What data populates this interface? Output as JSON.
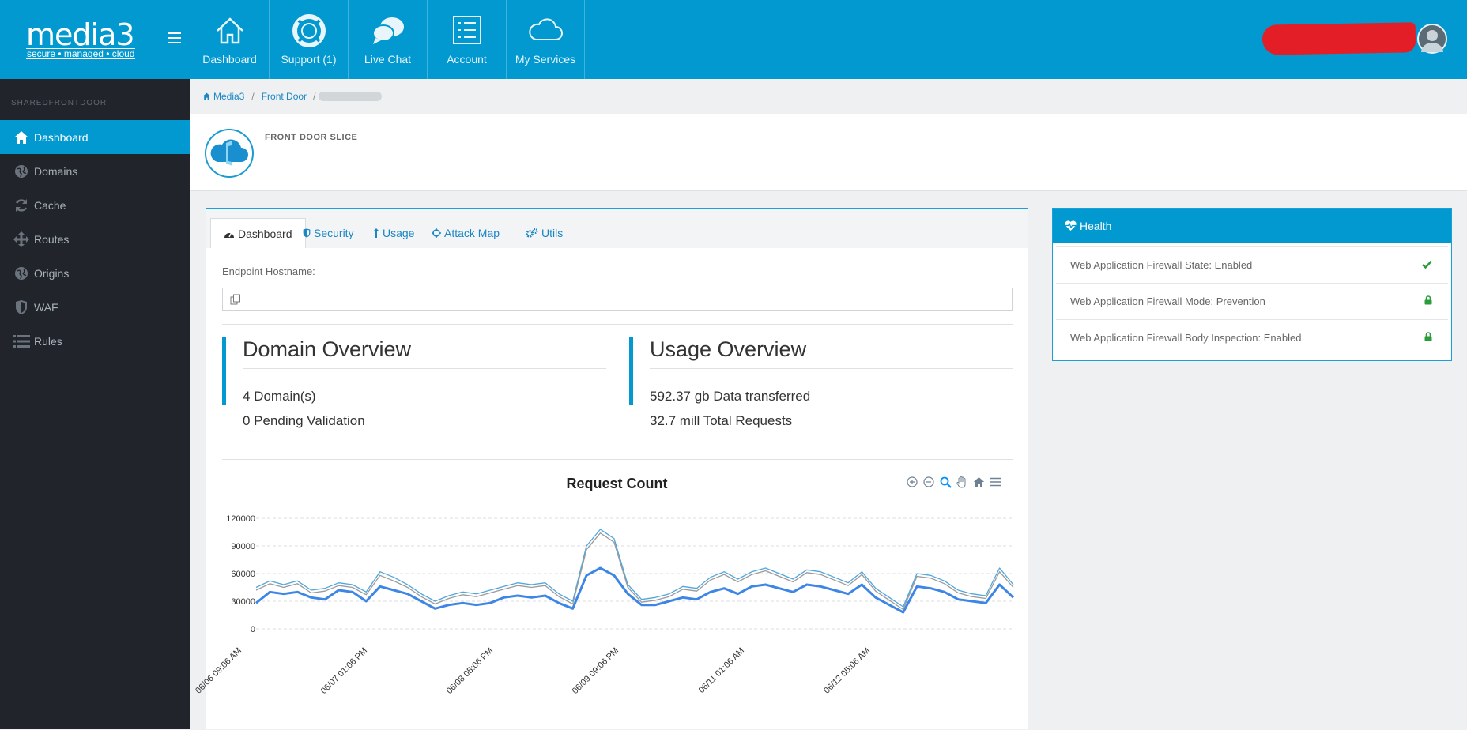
{
  "brand": {
    "name": "media3",
    "tagline": "secure • managed • cloud"
  },
  "topnav": [
    {
      "label": "Dashboard",
      "icon": "home-icon"
    },
    {
      "label": "Support (1)",
      "icon": "lifebuoy-icon"
    },
    {
      "label": "Live Chat",
      "icon": "chat-icon"
    },
    {
      "label": "Account",
      "icon": "list-icon"
    },
    {
      "label": "My Services",
      "icon": "cloud-icon"
    }
  ],
  "sidebar": {
    "heading": "SHAREDFRONTDOOR",
    "items": [
      {
        "label": "Dashboard",
        "icon": "home-icon",
        "active": true
      },
      {
        "label": "Domains",
        "icon": "globe-icon"
      },
      {
        "label": "Cache",
        "icon": "refresh-icon"
      },
      {
        "label": "Routes",
        "icon": "arrows-icon"
      },
      {
        "label": "Origins",
        "icon": "globe-icon"
      },
      {
        "label": "WAF",
        "icon": "shield-icon"
      },
      {
        "label": "Rules",
        "icon": "list-icon"
      }
    ]
  },
  "breadcrumb": {
    "home": "Media3",
    "section": "Front Door"
  },
  "page": {
    "title": "FRONT DOOR SLICE"
  },
  "tabs": [
    {
      "label": "Dashboard",
      "icon": "dashboard-icon",
      "active": true
    },
    {
      "label": "Security",
      "icon": "shield-icon"
    },
    {
      "label": "Usage",
      "icon": "upload-icon"
    },
    {
      "label": "Attack Map",
      "icon": "crosshair-icon"
    },
    {
      "label": "Utils",
      "icon": "cogs-icon"
    }
  ],
  "endpoint": {
    "label": "Endpoint Hostname:",
    "value": ""
  },
  "domain_overview": {
    "title": "Domain Overview",
    "line1": "4 Domain(s)",
    "line2": "0 Pending Validation"
  },
  "usage_overview": {
    "title": "Usage Overview",
    "line1": "592.37 gb Data transferred",
    "line2": "32.7 mill Total Requests"
  },
  "chart_data": {
    "type": "line",
    "title": "Request Count",
    "ylim": [
      0,
      120000
    ],
    "yticks": [
      "0",
      "30000",
      "60000",
      "90000",
      "120000"
    ],
    "xtick_labels": [
      "06/06 09:06 AM",
      "06/07 01:06 PM",
      "06/08 05:06 PM",
      "06/09 09:06 PM",
      "06/11 01:06 AM",
      "06/12 05:06 AM"
    ],
    "grid": true,
    "series_colors": [
      "#3d86e6",
      "#4fa6dc",
      "#9a9a9a",
      "#c0504d",
      "#5e8fc7",
      "#7fc4e4",
      "#333333"
    ],
    "series": [
      {
        "values": [
          28000,
          40000,
          38000,
          40000,
          34000,
          32000,
          42000,
          40000,
          30000,
          46000,
          42000,
          38000,
          30000,
          22000,
          26000,
          28000,
          26000,
          28000,
          34000,
          36000,
          34000,
          36000,
          28000,
          22000,
          58000,
          66000,
          58000,
          38000,
          26000,
          26000,
          30000,
          34000,
          32000,
          40000,
          44000,
          38000,
          46000,
          48000,
          44000,
          40000,
          48000,
          46000,
          42000,
          38000,
          48000,
          34000,
          26000,
          18000,
          46000,
          44000,
          40000,
          32000,
          30000,
          28000,
          48000,
          34000
        ]
      },
      {
        "values": [
          45000,
          52000,
          48000,
          52000,
          42000,
          44000,
          50000,
          48000,
          40000,
          62000,
          56000,
          48000,
          38000,
          30000,
          36000,
          40000,
          38000,
          42000,
          46000,
          50000,
          48000,
          50000,
          38000,
          30000,
          90000,
          108000,
          98000,
          48000,
          32000,
          34000,
          38000,
          46000,
          44000,
          56000,
          62000,
          54000,
          62000,
          66000,
          60000,
          54000,
          64000,
          62000,
          56000,
          50000,
          62000,
          44000,
          34000,
          24000,
          60000,
          58000,
          52000,
          42000,
          38000,
          36000,
          66000,
          48000
        ]
      },
      {
        "values": [
          42000,
          49000,
          45000,
          49000,
          39000,
          41000,
          47000,
          45000,
          37000,
          58000,
          52000,
          45000,
          35000,
          27000,
          33000,
          37000,
          35000,
          39000,
          43000,
          47000,
          45000,
          47000,
          35000,
          27000,
          86000,
          104000,
          94000,
          45000,
          29000,
          31000,
          35000,
          43000,
          41000,
          53000,
          59000,
          51000,
          59000,
          63000,
          57000,
          51000,
          61000,
          59000,
          53000,
          47000,
          59000,
          41000,
          31000,
          21000,
          57000,
          55000,
          49000,
          39000,
          35000,
          33000,
          62000,
          45000
        ]
      }
    ]
  },
  "health": {
    "title": "Health",
    "rows": [
      {
        "label": "Web Application Firewall State: Enabled",
        "status": "check-icon"
      },
      {
        "label": "Web Application Firewall Mode: Prevention",
        "status": "lock-icon"
      },
      {
        "label": "Web Application Firewall Body Inspection: Enabled",
        "status": "lock-icon"
      }
    ]
  },
  "colors": {
    "accent": "#0199cf",
    "sidebar": "#21252b",
    "ok": "#2a9d3a"
  }
}
